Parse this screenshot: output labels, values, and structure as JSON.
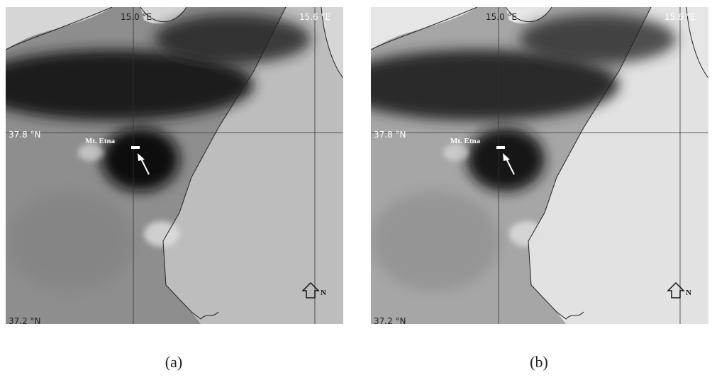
{
  "panels": [
    {
      "caption": "(a)",
      "lon_labels": [
        "15.0 °E",
        "15.6 °E"
      ],
      "lat_labels": [
        "37.8 °N",
        "37.2 °N"
      ],
      "volcano_label": "Mt. Etna",
      "north_label": "N"
    },
    {
      "caption": "(b)",
      "lon_labels": [
        "15.0 °E",
        "15.6 °E"
      ],
      "lat_labels": [
        "37.8 °N",
        "37.2 °N"
      ],
      "volcano_label": "Mt. Etna",
      "north_label": "N"
    }
  ]
}
